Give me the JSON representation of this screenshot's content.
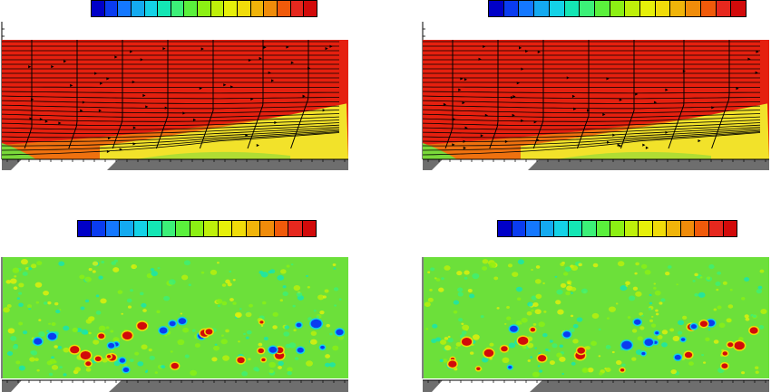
{
  "colormap": [
    "#0000c8",
    "#0a3cf0",
    "#1478ff",
    "#14aaf0",
    "#14d2e6",
    "#14e6b4",
    "#3cf078",
    "#5af03c",
    "#8cf014",
    "#bef00a",
    "#e6f00a",
    "#f0dc0a",
    "#f0b40a",
    "#f08c0a",
    "#f05a0a",
    "#e6281e",
    "#d20a0a"
  ],
  "panels": [
    {
      "id": "top-left",
      "kind": "streamlines"
    },
    {
      "id": "top-right",
      "kind": "streamlines"
    },
    {
      "id": "bottom-left",
      "kind": "vortices"
    },
    {
      "id": "bottom-right",
      "kind": "vortices"
    }
  ],
  "colors": {
    "fast_flow": "#e5200f",
    "mid_flow": "#f07a10",
    "slow_flow": "#f2e22a",
    "near_wall": "#7ad83a",
    "background_field": "#6ce03a",
    "wall": "#6e6e6e",
    "streamline": "#000000"
  }
}
